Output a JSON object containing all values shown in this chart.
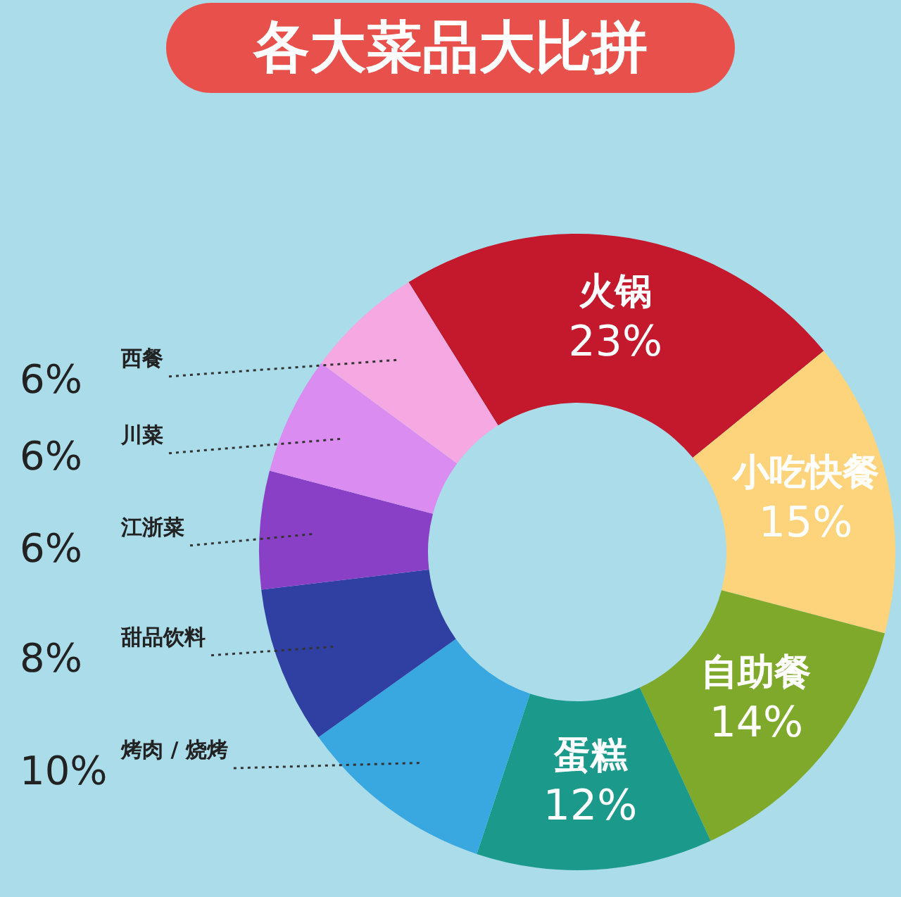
{
  "chart_data": {
    "type": "donut",
    "title": "各大菜品大比拼",
    "categories": [
      "火锅",
      "小吃快餐",
      "自助餐",
      "蛋糕",
      "烤肉 / 烧烤",
      "甜品饮料",
      "江浙菜",
      "川菜",
      "西餐"
    ],
    "values": [
      23,
      15,
      14,
      12,
      10,
      8,
      6,
      6,
      6
    ],
    "value_labels": [
      "23%",
      "15%",
      "14%",
      "12%",
      "10%",
      "8%",
      "6%",
      "6%",
      "6%"
    ],
    "colors": [
      "#c4182c",
      "#fdd47c",
      "#7fa92b",
      "#1b9a8c",
      "#3aa8e0",
      "#2f3fa2",
      "#8a40c6",
      "#da8cf0",
      "#f6a8e2"
    ]
  }
}
